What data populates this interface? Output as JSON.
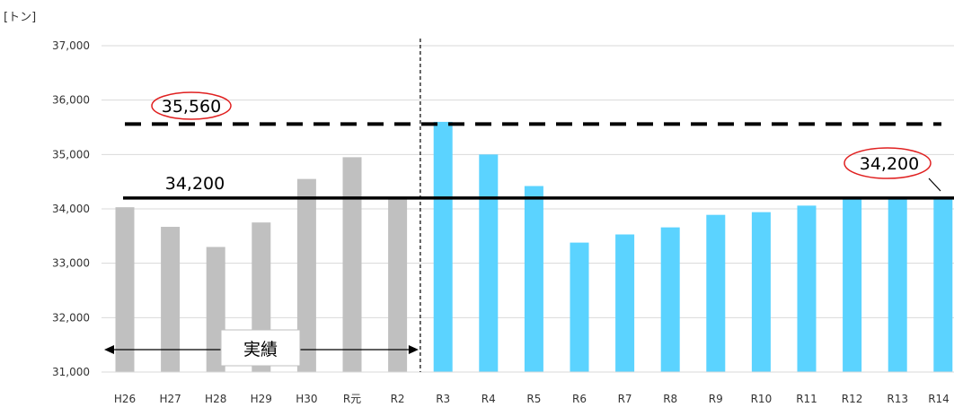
{
  "chart_data": {
    "type": "bar",
    "y_unit_label": "[トン]",
    "categories": [
      "H26",
      "H27",
      "H28",
      "H29",
      "H30",
      "R元",
      "R2",
      "R3",
      "R4",
      "R5",
      "R6",
      "R7",
      "R8",
      "R9",
      "R10",
      "R11",
      "R12",
      "R13",
      "R14"
    ],
    "series": [
      {
        "values": [
          34030,
          33670,
          33300,
          33750,
          34550,
          34950,
          34200,
          35600,
          35000,
          34420,
          33380,
          33530,
          33660,
          33890,
          33940,
          34060,
          34200,
          34200,
          34200
        ],
        "colors": [
          "#c0c0c0",
          "#c0c0c0",
          "#c0c0c0",
          "#c0c0c0",
          "#c0c0c0",
          "#c0c0c0",
          "#c0c0c0",
          "#5bd3ff",
          "#5bd3ff",
          "#5bd3ff",
          "#5bd3ff",
          "#5bd3ff",
          "#5bd3ff",
          "#5bd3ff",
          "#5bd3ff",
          "#5bd3ff",
          "#5bd3ff",
          "#5bd3ff",
          "#5bd3ff"
        ]
      }
    ],
    "ylim": [
      31000,
      37000
    ],
    "yticks": [
      31000,
      32000,
      33000,
      34000,
      35000,
      36000,
      37000
    ],
    "ytick_labels": [
      "31,000",
      "32,000",
      "33,000",
      "34,000",
      "35,000",
      "36,000",
      "37,000"
    ],
    "grid": true,
    "reference_lines": [
      {
        "value": 35560,
        "label": "35,560",
        "style": "dashed",
        "circled": true
      },
      {
        "value": 34200,
        "label": "34,200",
        "style": "solid",
        "circled": false
      }
    ],
    "end_annotation": {
      "label": "34,200",
      "circled": true
    },
    "divider_after": "R2",
    "period_annotation": {
      "label": "実績",
      "from": "H26",
      "to": "R2"
    }
  }
}
